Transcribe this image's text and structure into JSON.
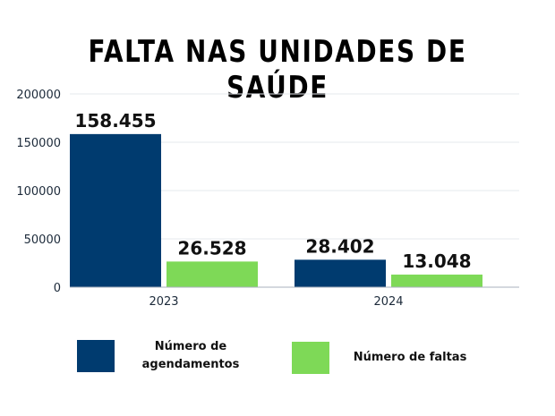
{
  "colors": {
    "agendamentos": "#003b6f",
    "faltas": "#7ed957",
    "grid": "#e6e9ee",
    "axis": "#aab2bd"
  },
  "chart_data": {
    "type": "bar",
    "title": "FALTA NAS UNIDADES DE SAÚDE",
    "categories": [
      "2023",
      "2024"
    ],
    "series": [
      {
        "name": "Número de agendamentos",
        "values": [
          158455,
          28402
        ],
        "data_labels": [
          "158.455",
          "28.402"
        ]
      },
      {
        "name": "Número de faltas",
        "values": [
          26528,
          13048
        ],
        "data_labels": [
          "26.528",
          "13.048"
        ]
      }
    ],
    "ylim": [
      0,
      200000
    ],
    "yticks": [
      "0",
      "50000",
      "100000",
      "150000",
      "200000"
    ],
    "grid": true,
    "legend": "bottom"
  }
}
